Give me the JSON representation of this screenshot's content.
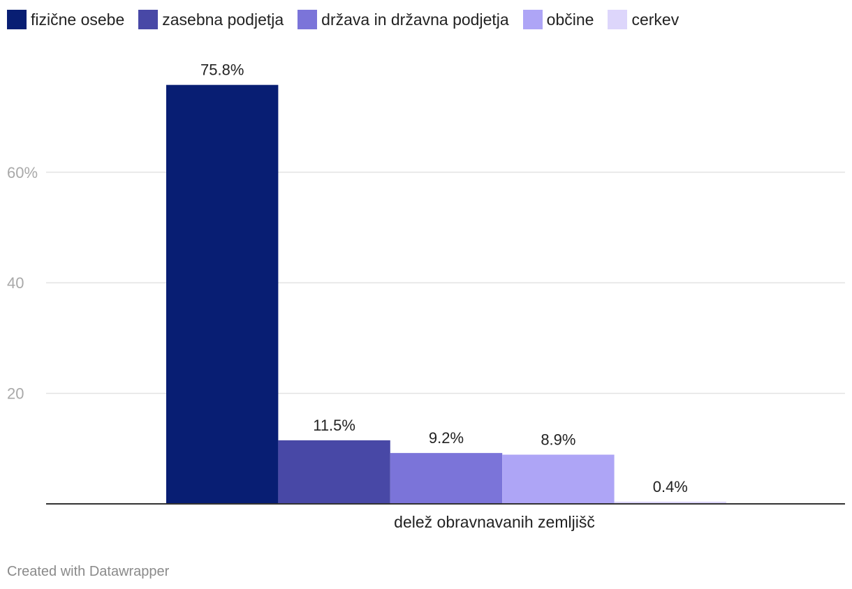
{
  "colors": [
    "#081e73",
    "#4848a6",
    "#7b74d9",
    "#aea5f6",
    "#ddd6fb"
  ],
  "footer": "Created with Datawrapper",
  "chart_data": {
    "type": "bar",
    "categories": [
      "delež obravnavanih zemljišč"
    ],
    "series": [
      {
        "name": "fizične osebe",
        "values": [
          75.8
        ],
        "label": "75.8%"
      },
      {
        "name": "zasebna podjetja",
        "values": [
          11.5
        ],
        "label": "11.5%"
      },
      {
        "name": "država in državna podjetja",
        "values": [
          9.2
        ],
        "label": "9.2%"
      },
      {
        "name": "občine",
        "values": [
          8.9
        ],
        "label": "8.9%"
      },
      {
        "name": "cerkev",
        "values": [
          0.4
        ],
        "label": "0.4%"
      }
    ],
    "yticks": [
      {
        "value": 20,
        "label": "20"
      },
      {
        "value": 40,
        "label": "40"
      },
      {
        "value": 60,
        "label": "60%"
      }
    ],
    "ylim": [
      0,
      80
    ],
    "grid": true,
    "legend_position": "top-left",
    "title": "",
    "xlabel": "",
    "ylabel": ""
  }
}
